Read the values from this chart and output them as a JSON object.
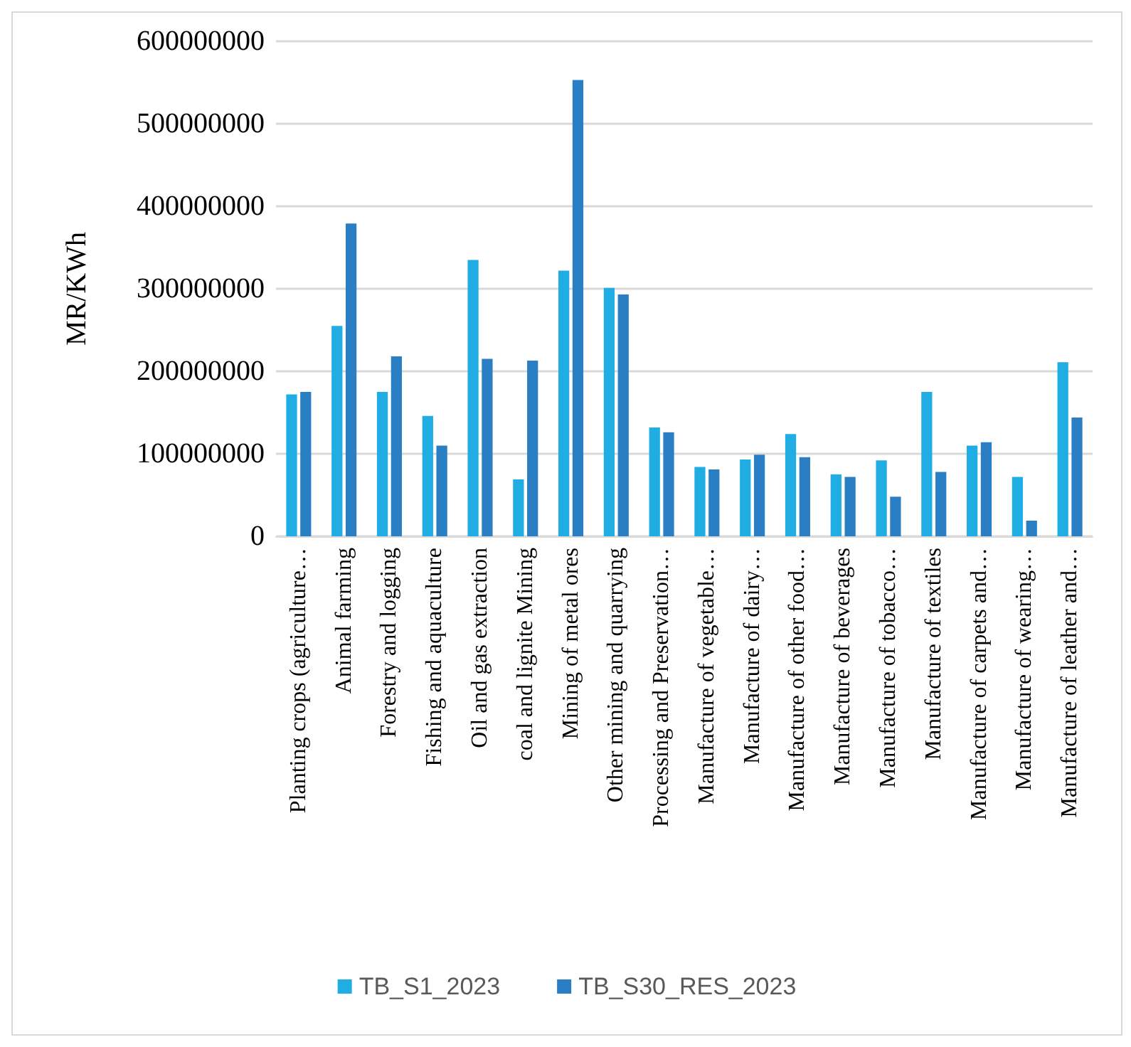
{
  "chart_data": {
    "type": "bar",
    "ylabel": "MR/KWh",
    "categories": [
      "Planting crops (agriculture…",
      "Animal farming",
      "Forestry and logging",
      "Fishing and aquaculture",
      "Oil and gas extraction",
      "coal and lignite Mining",
      "Mining of metal ores",
      "Other mining and quarrying",
      "Processing and Preservation…",
      "Manufacture of vegetable…",
      "Manufacture of dairy…",
      "Manufacture of other food…",
      "Manufacture of beverages",
      "Manufacture of tobacco…",
      "Manufacture of textiles",
      "Manufacture of carpets and…",
      "Manufacture of wearing…",
      "Manufacture of leather and…"
    ],
    "series": [
      {
        "name": "TB_S1_2023",
        "color": "#1fade4",
        "values": [
          172000000,
          255000000,
          175000000,
          146000000,
          335000000,
          69000000,
          322000000,
          301000000,
          132000000,
          84000000,
          93000000,
          124000000,
          75000000,
          92000000,
          175000000,
          110000000,
          72000000,
          211000000
        ]
      },
      {
        "name": "TB_S30_RES_2023",
        "color": "#2a7fc4",
        "values": [
          175000000,
          379000000,
          218000000,
          110000000,
          215000000,
          213000000,
          553000000,
          293000000,
          126000000,
          81000000,
          99000000,
          96000000,
          72000000,
          48000000,
          78000000,
          114000000,
          19000000,
          144000000
        ]
      }
    ],
    "ylim": [
      0,
      600000000
    ],
    "yticks": [
      0,
      100000000,
      200000000,
      300000000,
      400000000,
      500000000,
      600000000
    ],
    "grid": "y",
    "legend": "bottom"
  }
}
